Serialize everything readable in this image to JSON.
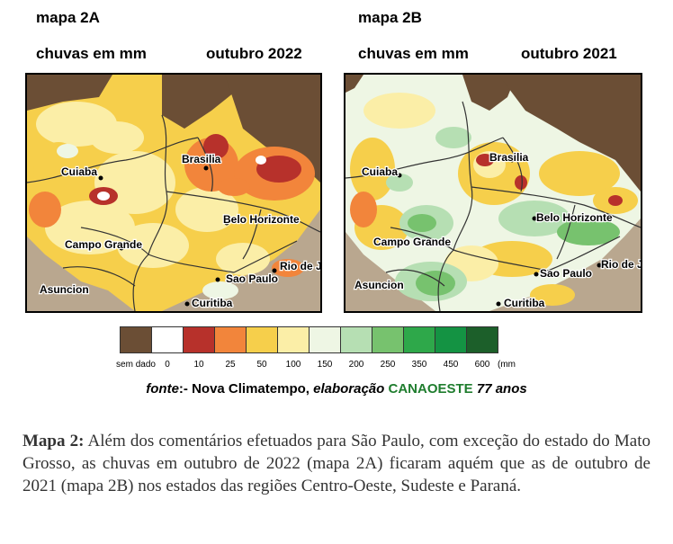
{
  "map_a": {
    "title": "mapa 2A",
    "subtitle": "chuvas em mm",
    "period": "outubro 2022",
    "cities": [
      "Cuiaba",
      "Brasilia",
      "Belo Horizonte",
      "Campo Grande",
      "Sao Paulo",
      "Rio de J",
      "Asuncion",
      "Curitiba"
    ]
  },
  "map_b": {
    "title": "mapa 2B",
    "subtitle": "chuvas em mm",
    "period": "outubro 2021",
    "cities": [
      "Cuiaba",
      "Brasilia",
      "Belo Horizonte",
      "Campo Grande",
      "Sao Paulo",
      "Rio de J",
      "Asuncion",
      "Curitiba"
    ]
  },
  "legend": {
    "items": [
      {
        "label": "sem dado",
        "color": "#6b4e35"
      },
      {
        "label": "0",
        "color": "#ffffff"
      },
      {
        "label": "10",
        "color": "#b7312b"
      },
      {
        "label": "25",
        "color": "#f2853b"
      },
      {
        "label": "50",
        "color": "#f6cf4b"
      },
      {
        "label": "100",
        "color": "#fbeea7"
      },
      {
        "label": "150",
        "color": "#eef6e4"
      },
      {
        "label": "200",
        "color": "#b6dfb3"
      },
      {
        "label": "250",
        "color": "#77c26e"
      },
      {
        "label": "350",
        "color": "#2ea84a"
      },
      {
        "label": "450",
        "color": "#149343"
      },
      {
        "label": "600",
        "color": "#1c5f2a"
      }
    ],
    "unit": "(mm"
  },
  "source": {
    "fonte": "fonte",
    "mid": ":- Nova Climatempo, ",
    "elaboracao": "elaboração",
    "org": "CANAOESTE",
    "years": "77 anos"
  },
  "caption": {
    "lead": "Mapa 2:",
    "text": " Além dos comentários efetuados para São Paulo, com exceção do estado do Mato Grosso, as chuvas em outubro de 2022 (mapa 2A) ficaram aquém que as de outubro de 2021 (mapa 2B) nos estados das regiões Centro-Oeste, Sudeste e Paraná."
  }
}
